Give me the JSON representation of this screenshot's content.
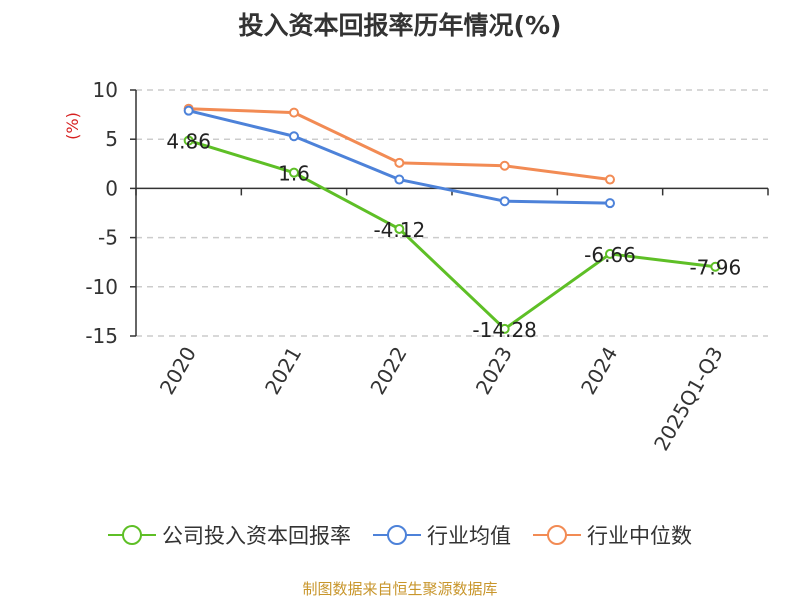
{
  "chart_data": {
    "type": "line",
    "title": "投入资本回报率历年情况(%)",
    "ylabel": "(%)",
    "xlabel": "",
    "categories": [
      "2020",
      "2021",
      "2022",
      "2023",
      "2024",
      "2025Q1-Q3"
    ],
    "ylim": [
      -15,
      10
    ],
    "yticks": [
      10,
      5,
      0,
      -5,
      -10,
      -15
    ],
    "grid": true,
    "legend_position": "bottom",
    "series": [
      {
        "name": "公司投入资本回报率",
        "color": "#5ebf26",
        "values": [
          4.86,
          1.6,
          -4.12,
          -14.28,
          -6.66,
          -7.96
        ],
        "labels": [
          "4.86",
          "1.6",
          "-4.12",
          "-14.28",
          "-6.66",
          "-7.96"
        ]
      },
      {
        "name": "行业均值",
        "color": "#4d82d9",
        "values": [
          7.9,
          5.3,
          0.9,
          -1.3,
          -1.5,
          null
        ]
      },
      {
        "name": "行业中位数",
        "color": "#f28b54",
        "values": [
          8.1,
          7.7,
          2.6,
          2.3,
          0.9,
          null
        ]
      }
    ]
  },
  "source": "制图数据来自恒生聚源数据库",
  "colors": {
    "axis": "#333333",
    "grid": "#cccccc",
    "ylabel": "#d62020"
  }
}
